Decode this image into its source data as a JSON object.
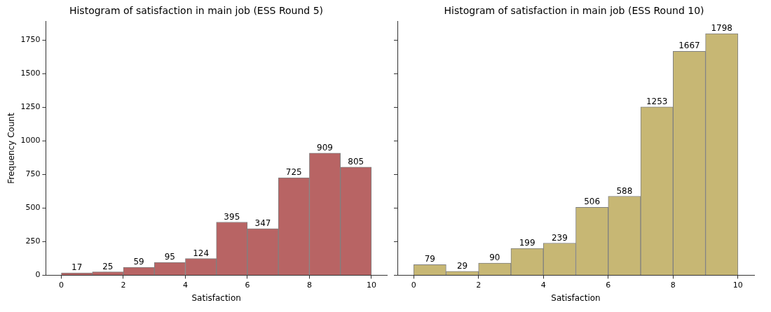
{
  "chart_data": [
    {
      "type": "histogram",
      "title": "Histogram of satisfaction in main job (ESS Round 5)",
      "xlabel": "Satisfaction",
      "ylabel": "Frequency Count",
      "bins": [
        0,
        1,
        2,
        3,
        4,
        5,
        6,
        7,
        8,
        9,
        10
      ],
      "values": [
        17,
        25,
        59,
        95,
        124,
        395,
        347,
        725,
        909,
        805
      ],
      "color": "#b86464",
      "xlim": [
        -0.5,
        10.5
      ],
      "xticks": [
        0,
        2,
        4,
        6,
        8,
        10
      ],
      "ylim": [
        0,
        1888
      ],
      "yticks": [
        0,
        250,
        500,
        750,
        1000,
        1250,
        1500,
        1750
      ],
      "data_labels": true
    },
    {
      "type": "histogram",
      "title": "Histogram of satisfaction in main job (ESS Round 10)",
      "xlabel": "Satisfaction",
      "bins": [
        0,
        1,
        2,
        3,
        4,
        5,
        6,
        7,
        8,
        9,
        10
      ],
      "values": [
        79,
        29,
        90,
        199,
        239,
        506,
        588,
        1253,
        1667,
        1798
      ],
      "color": "#c7b774",
      "xlim": [
        -0.5,
        10.5
      ],
      "xticks": [
        0,
        2,
        4,
        6,
        8,
        10
      ],
      "ylim": [
        0,
        1888
      ],
      "yticks": [
        0,
        250,
        500,
        750,
        1000,
        1250,
        1500,
        1750
      ],
      "data_labels": true,
      "tick_labels": "x"
    }
  ]
}
